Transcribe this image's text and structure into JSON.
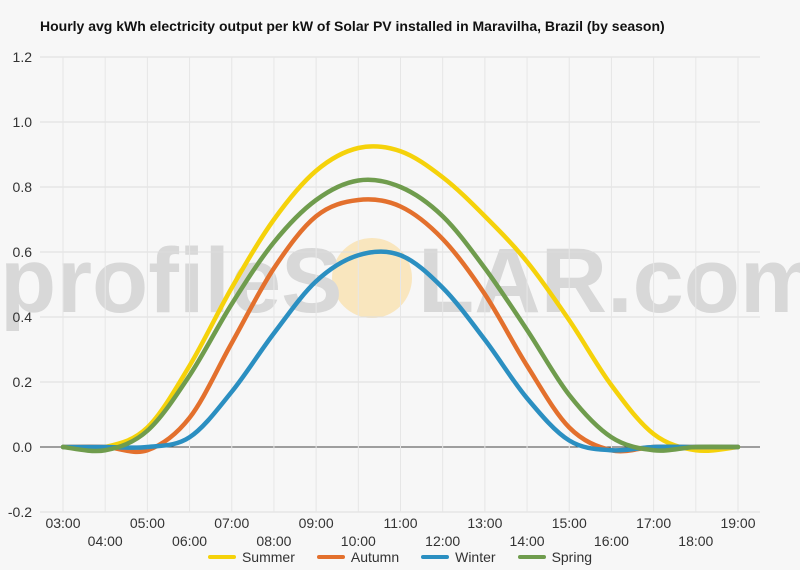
{
  "title": "Hourly avg kWh electricity output per kW of Solar PV installed in Maravilha, Brazil (by season)",
  "watermark": {
    "text_left": "profileS",
    "text_right": "LAR.com",
    "color": "#d8d8d8",
    "sun_color": "#f9e3b4"
  },
  "chart_data": {
    "type": "line",
    "title": "Hourly avg kWh electricity output per kW of Solar PV installed in Maravilha, Brazil (by season)",
    "xlabel": "",
    "ylabel": "",
    "ylim": [
      -0.2,
      1.2
    ],
    "yticks": [
      "-0.2",
      "0.0",
      "0.2",
      "0.4",
      "0.6",
      "0.8",
      "1.0",
      "1.2"
    ],
    "x": [
      "03:00",
      "04:00",
      "05:00",
      "06:00",
      "07:00",
      "08:00",
      "09:00",
      "10:00",
      "11:00",
      "12:00",
      "13:00",
      "14:00",
      "15:00",
      "16:00",
      "17:00",
      "18:00",
      "19:00"
    ],
    "grid": true,
    "legend_position": "bottom",
    "series": [
      {
        "name": "Summer",
        "color": "#f5d20a",
        "values": [
          0.0,
          0.0,
          0.06,
          0.25,
          0.49,
          0.7,
          0.85,
          0.92,
          0.91,
          0.83,
          0.71,
          0.57,
          0.39,
          0.19,
          0.04,
          -0.01,
          0.0
        ]
      },
      {
        "name": "Autumn",
        "color": "#e3702d",
        "values": [
          0.0,
          0.0,
          -0.01,
          0.09,
          0.32,
          0.55,
          0.71,
          0.76,
          0.74,
          0.64,
          0.47,
          0.25,
          0.06,
          -0.01,
          0.0,
          0.0,
          0.0
        ]
      },
      {
        "name": "Winter",
        "color": "#2b8fc1",
        "values": [
          0.0,
          0.0,
          0.0,
          0.03,
          0.17,
          0.35,
          0.51,
          0.59,
          0.59,
          0.49,
          0.33,
          0.15,
          0.02,
          -0.01,
          0.0,
          0.0,
          0.0
        ]
      },
      {
        "name": "Spring",
        "color": "#6f9c4d",
        "values": [
          0.0,
          -0.01,
          0.05,
          0.22,
          0.44,
          0.63,
          0.76,
          0.82,
          0.8,
          0.71,
          0.55,
          0.36,
          0.16,
          0.03,
          -0.01,
          0.0,
          0.0
        ]
      }
    ]
  }
}
